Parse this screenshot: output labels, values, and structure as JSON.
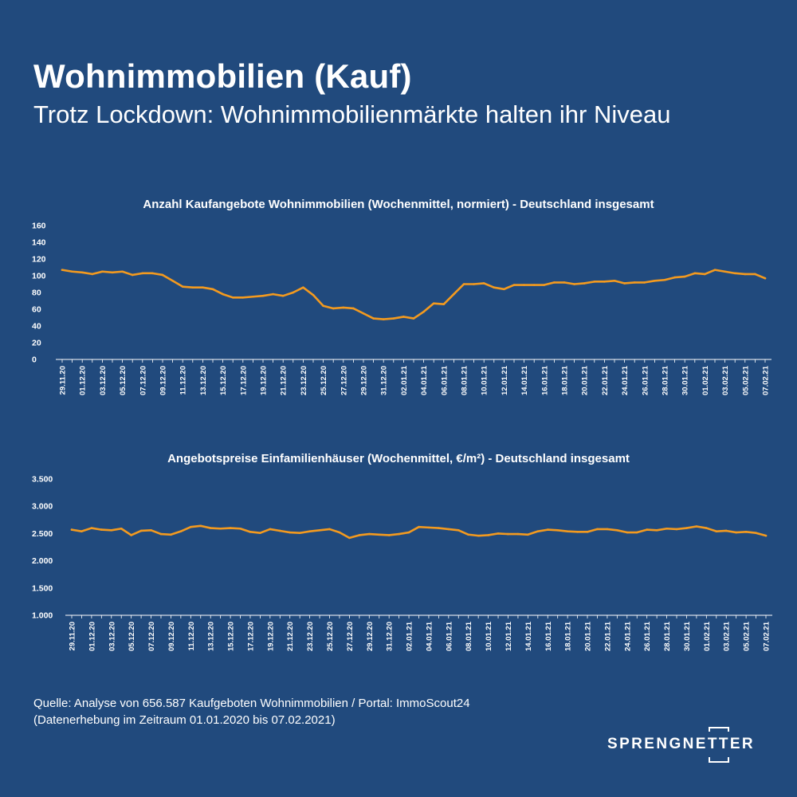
{
  "header": {
    "title": "Wohnimmobilien (Kauf)",
    "subtitle": "Trotz Lockdown: Wohnimmobilienmärkte halten ihr Niveau"
  },
  "source": {
    "line1": "Quelle: Analyse von 656.587 Kaufgeboten Wohnimmobilien / Portal: ImmoScout24",
    "line2": "(Datenerhebung im Zeitraum 01.01.2020 bis 07.02.2021)"
  },
  "logo": {
    "text": "SPRENGNETTER"
  },
  "colors": {
    "background": "#214a7d",
    "line": "#f39a1f",
    "text": "#ffffff"
  },
  "chart_data": [
    {
      "type": "line",
      "title": "Anzahl Kaufangebote Wohnimmobilien (Wochenmittel, normiert) - Deutschland insgesamt",
      "xlabel": "",
      "ylabel": "",
      "ylim": [
        0,
        160
      ],
      "yticks": [
        "0",
        "20",
        "40",
        "60",
        "80",
        "100",
        "120",
        "140",
        "160"
      ],
      "grid": false,
      "x": [
        "29.11.20",
        "30.11.20",
        "01.12.20",
        "02.12.20",
        "03.12.20",
        "04.12.20",
        "05.12.20",
        "06.12.20",
        "07.12.20",
        "08.12.20",
        "09.12.20",
        "10.12.20",
        "11.12.20",
        "12.12.20",
        "13.12.20",
        "14.12.20",
        "15.12.20",
        "16.12.20",
        "17.12.20",
        "18.12.20",
        "19.12.20",
        "20.12.20",
        "21.12.20",
        "22.12.20",
        "23.12.20",
        "24.12.20",
        "25.12.20",
        "26.12.20",
        "27.12.20",
        "28.12.20",
        "29.12.20",
        "30.12.20",
        "31.12.20",
        "01.01.21",
        "02.01.21",
        "03.01.21",
        "04.01.21",
        "05.01.21",
        "06.01.21",
        "07.01.21",
        "08.01.21",
        "09.01.21",
        "10.01.21",
        "11.01.21",
        "12.01.21",
        "13.01.21",
        "14.01.21",
        "15.01.21",
        "16.01.21",
        "17.01.21",
        "18.01.21",
        "19.01.21",
        "20.01.21",
        "21.01.21",
        "22.01.21",
        "23.01.21",
        "24.01.21",
        "25.01.21",
        "26.01.21",
        "27.01.21",
        "28.01.21",
        "29.01.21",
        "30.01.21",
        "31.01.21",
        "01.02.21",
        "02.02.21",
        "03.02.21",
        "04.02.21",
        "05.02.21",
        "06.02.21",
        "07.02.21"
      ],
      "xticks": [
        "29.11.20",
        "01.12.20",
        "03.12.20",
        "05.12.20",
        "07.12.20",
        "09.12.20",
        "11.12.20",
        "13.12.20",
        "15.12.20",
        "17.12.20",
        "19.12.20",
        "21.12.20",
        "23.12.20",
        "25.12.20",
        "27.12.20",
        "29.12.20",
        "31.12.20",
        "02.01.21",
        "04.01.21",
        "06.01.21",
        "08.01.21",
        "10.01.21",
        "12.01.21",
        "14.01.21",
        "16.01.21",
        "18.01.21",
        "20.01.21",
        "22.01.21",
        "24.01.21",
        "26.01.21",
        "28.01.21",
        "30.01.21",
        "01.02.21",
        "03.02.21",
        "05.02.21",
        "07.02.21"
      ],
      "values": [
        107,
        105,
        104,
        102,
        105,
        104,
        105,
        101,
        103,
        103,
        101,
        94,
        87,
        86,
        86,
        84,
        78,
        74,
        74,
        75,
        76,
        78,
        76,
        80,
        86,
        77,
        64,
        61,
        62,
        61,
        55,
        49,
        48,
        49,
        51,
        49,
        57,
        67,
        66,
        78,
        90,
        90,
        91,
        86,
        84,
        89,
        89,
        89,
        89,
        92,
        92,
        90,
        91,
        93,
        93,
        94,
        91,
        92,
        92,
        94,
        95,
        98,
        99,
        103,
        102,
        107,
        105,
        103,
        102,
        102,
        97
      ]
    },
    {
      "type": "line",
      "title": "Angebotspreise Einfamilienhäuser (Wochenmittel, €/m²) - Deutschland insgesamt",
      "xlabel": "",
      "ylabel": "",
      "ylim": [
        1000,
        3500
      ],
      "yticks": [
        "1.000",
        "1.500",
        "2.000",
        "2.500",
        "3.000",
        "3.500"
      ],
      "grid": false,
      "x": [
        "29.11.20",
        "30.11.20",
        "01.12.20",
        "02.12.20",
        "03.12.20",
        "04.12.20",
        "05.12.20",
        "06.12.20",
        "07.12.20",
        "08.12.20",
        "09.12.20",
        "10.12.20",
        "11.12.20",
        "12.12.20",
        "13.12.20",
        "14.12.20",
        "15.12.20",
        "16.12.20",
        "17.12.20",
        "18.12.20",
        "19.12.20",
        "20.12.20",
        "21.12.20",
        "22.12.20",
        "23.12.20",
        "24.12.20",
        "25.12.20",
        "26.12.20",
        "27.12.20",
        "28.12.20",
        "29.12.20",
        "30.12.20",
        "31.12.20",
        "01.01.21",
        "02.01.21",
        "03.01.21",
        "04.01.21",
        "05.01.21",
        "06.01.21",
        "07.01.21",
        "08.01.21",
        "09.01.21",
        "10.01.21",
        "11.01.21",
        "12.01.21",
        "13.01.21",
        "14.01.21",
        "15.01.21",
        "16.01.21",
        "17.01.21",
        "18.01.21",
        "19.01.21",
        "20.01.21",
        "21.01.21",
        "22.01.21",
        "23.01.21",
        "24.01.21",
        "25.01.21",
        "26.01.21",
        "27.01.21",
        "28.01.21",
        "29.01.21",
        "30.01.21",
        "31.01.21",
        "01.02.21",
        "02.02.21",
        "03.02.21",
        "04.02.21",
        "05.02.21",
        "06.02.21",
        "07.02.21"
      ],
      "xticks": [
        "29.11.20",
        "01.12.20",
        "03.12.20",
        "05.12.20",
        "07.12.20",
        "09.12.20",
        "11.12.20",
        "13.12.20",
        "15.12.20",
        "17.12.20",
        "19.12.20",
        "21.12.20",
        "23.12.20",
        "25.12.20",
        "27.12.20",
        "29.12.20",
        "31.12.20",
        "02.01.21",
        "04.01.21",
        "06.01.21",
        "08.01.21",
        "10.01.21",
        "12.01.21",
        "14.01.21",
        "16.01.21",
        "18.01.21",
        "20.01.21",
        "22.01.21",
        "24.01.21",
        "26.01.21",
        "28.01.21",
        "30.01.21",
        "01.02.21",
        "03.02.21",
        "05.02.21",
        "07.02.21"
      ],
      "values": [
        2570,
        2540,
        2600,
        2570,
        2560,
        2590,
        2470,
        2550,
        2560,
        2490,
        2480,
        2540,
        2620,
        2640,
        2600,
        2590,
        2600,
        2590,
        2530,
        2510,
        2580,
        2550,
        2520,
        2510,
        2540,
        2560,
        2580,
        2520,
        2420,
        2470,
        2490,
        2480,
        2470,
        2490,
        2520,
        2620,
        2610,
        2600,
        2580,
        2560,
        2480,
        2460,
        2470,
        2500,
        2490,
        2490,
        2480,
        2540,
        2570,
        2560,
        2540,
        2530,
        2530,
        2580,
        2580,
        2560,
        2520,
        2520,
        2570,
        2560,
        2590,
        2580,
        2600,
        2630,
        2600,
        2540,
        2550,
        2520,
        2530,
        2510,
        2460
      ]
    }
  ]
}
